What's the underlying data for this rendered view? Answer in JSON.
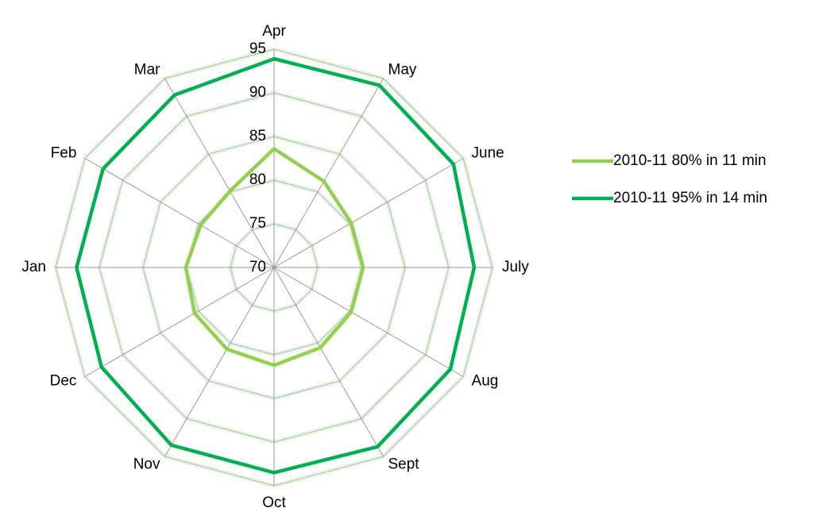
{
  "chart_data": {
    "type": "radar",
    "categories": [
      "Apr",
      "May",
      "June",
      "July",
      "Aug",
      "Sept",
      "Oct",
      "Nov",
      "Dec",
      "Jan",
      "Feb",
      "Mar"
    ],
    "ylim": [
      70,
      95
    ],
    "yticks": [
      70,
      75,
      80,
      85,
      90,
      95
    ],
    "series": [
      {
        "name": "2010-11 80% in 11 min",
        "color": "#92d050",
        "values": [
          83.6,
          81.4,
          80.2,
          80.2,
          80.2,
          80.6,
          81.2,
          80.8,
          80.5,
          80.1,
          79.7,
          80.1
        ]
      },
      {
        "name": "2010-11 95% in 14 min",
        "color": "#00b050",
        "values": [
          93.9,
          94.1,
          93.7,
          92.9,
          93.3,
          93.7,
          93.5,
          93.5,
          92.8,
          92.6,
          92.6,
          92.8
        ]
      }
    ],
    "legend": "right"
  }
}
